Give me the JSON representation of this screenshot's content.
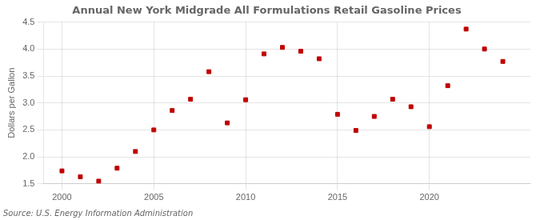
{
  "chart_data": {
    "type": "scatter",
    "title": "Annual New York Midgrade All Formulations Retail Gasoline Prices",
    "ylabel": "Dollars per Gallon",
    "annotation": "Source: U.S. Energy Information Administration",
    "x": [
      2000,
      2001,
      2002,
      2003,
      2004,
      2005,
      2006,
      2007,
      2008,
      2009,
      2010,
      2011,
      2012,
      2013,
      2014,
      2015,
      2016,
      2017,
      2018,
      2019,
      2020,
      2021,
      2022,
      2023,
      2024
    ],
    "values": [
      1.74,
      1.63,
      1.55,
      1.79,
      2.1,
      2.5,
      2.86,
      3.07,
      3.58,
      2.63,
      3.06,
      3.91,
      4.03,
      3.96,
      3.82,
      2.79,
      2.49,
      2.75,
      3.07,
      2.93,
      2.56,
      3.32,
      4.37,
      4.0,
      3.77
    ],
    "color": "#c00000",
    "marker": "square",
    "xlim": [
      1999.0,
      2025.5
    ],
    "xticks": [
      2000,
      2005,
      2010,
      2015,
      2020
    ],
    "ylim": [
      1.5,
      4.5
    ],
    "yticks": [
      1.5,
      {
        "value": 2.0,
        "label": "2.0"
      },
      2.5,
      {
        "value": 3.0,
        "label": "3.0"
      },
      3.5,
      {
        "value": 4.0,
        "label": "4.0"
      },
      4.5
    ],
    "grid": true
  }
}
